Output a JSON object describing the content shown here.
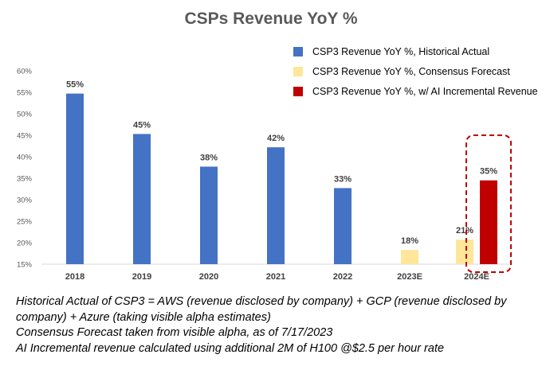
{
  "chart_data": {
    "type": "bar",
    "title": "CSPs Revenue YoY %",
    "categories": [
      "2018",
      "2019",
      "2020",
      "2021",
      "2022",
      "2023E",
      "2024E"
    ],
    "series": [
      {
        "name": "CSP3 Revenue YoY %, Historical Actual",
        "color": "#4472c4",
        "values": [
          54.7,
          45.3,
          37.7,
          42.2,
          32.7,
          null,
          null
        ],
        "labels": [
          "55%",
          "45%",
          "38%",
          "42%",
          "33%",
          "",
          ""
        ]
      },
      {
        "name": "CSP3 Revenue YoY %, Consensus Forecast",
        "color": "#ffe699",
        "values": [
          null,
          null,
          null,
          null,
          null,
          18.3,
          20.7
        ],
        "labels": [
          "",
          "",
          "",
          "",
          "",
          "18%",
          "21%"
        ]
      },
      {
        "name": "CSP3 Revenue YoY %, w/ AI Incremental Revenue",
        "color": "#c00000",
        "values": [
          null,
          null,
          null,
          null,
          null,
          null,
          34.5
        ],
        "labels": [
          "",
          "",
          "",
          "",
          "",
          "",
          "35%"
        ]
      }
    ],
    "ylim": [
      15,
      60
    ],
    "yticks": [
      "15%",
      "20%",
      "25%",
      "30%",
      "35%",
      "40%",
      "45%",
      "50%",
      "55%",
      "60%"
    ],
    "legend_position": "top-right",
    "grid": false,
    "highlight_category": "2024E",
    "highlight_style": "red dashed rounded box around the AI incremental bar"
  },
  "notes": [
    "Historical Actual of CSP3 = AWS (revenue disclosed by company) + GCP (revenue disclosed by",
    "company) + Azure (taking visible alpha estimates)",
    "Consensus Forecast taken from visible alpha, as of 7/17/2023",
    "AI Incremental revenue calculated using additional 2M of H100 @$2.5 per hour rate"
  ]
}
